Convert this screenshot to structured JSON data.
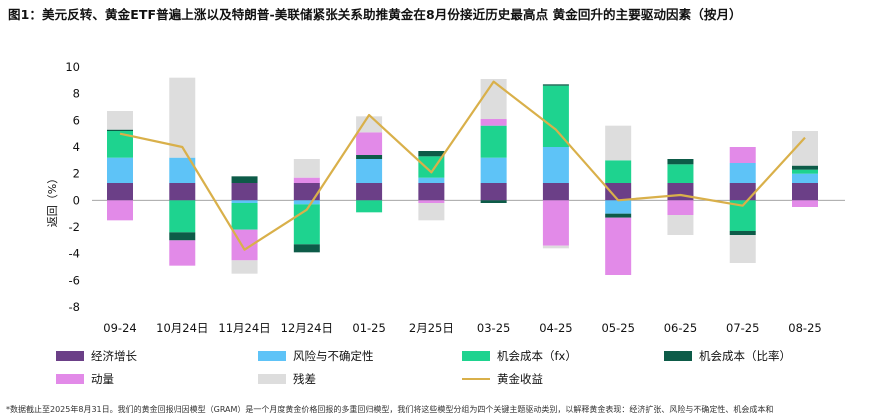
{
  "title": "图1：美元反转、黄金ETF普遍上涨以及特朗普-美联储紧张关系助推黄金在8月份接近历史最高点 黄金回升的主要驱动因素（按月）",
  "footnote": "*数据截止至2025年8月31日。我们的黄金回报归因模型（GRAM）是一个月度黄金价格回报的多重回归模型，我们将这些模型分组为四个关键主题驱动类别，以解释黄金表现：经济扩张、风险与不确定性、机会成本和",
  "colors": {
    "econ": "#6b3f87",
    "risk": "#5ec3f7",
    "opp_fx": "#1ed38f",
    "opp_rate": "#0d5b48",
    "momentum": "#e28ae8",
    "residual": "#dddddd",
    "gold_line": "#d9b04a"
  },
  "chart_data": {
    "type": "bar",
    "stacked": true,
    "title": "",
    "xlabel": "",
    "ylabel": "返回（%）",
    "ylim": [
      -8,
      10
    ],
    "yticks": [
      -8,
      -6,
      -4,
      -2,
      0,
      2,
      4,
      6,
      8,
      10
    ],
    "grid": false,
    "legend_position": "bottom",
    "categories": [
      "09-24",
      "10月24日",
      "11月24日",
      "12月24日",
      "01-25",
      "2月25日",
      "03-25",
      "04-25",
      "05-25",
      "06-25",
      "07-25",
      "08-25"
    ],
    "series": [
      {
        "name": "经济增长",
        "key": "econ",
        "values": [
          1.3,
          1.3,
          1.3,
          1.3,
          1.3,
          1.3,
          1.3,
          1.3,
          1.3,
          1.3,
          1.3,
          1.3
        ]
      },
      {
        "name": "风险与不确定性",
        "key": "risk",
        "values": [
          1.9,
          1.9,
          -0.2,
          -0.3,
          1.8,
          0.4,
          1.9,
          2.7,
          -1.0,
          0.0,
          1.5,
          0.7
        ]
      },
      {
        "name": "机会成本（fx）",
        "key": "opp_fx",
        "values": [
          2.0,
          -2.4,
          -2.0,
          -3.0,
          -0.9,
          1.6,
          2.4,
          4.6,
          1.7,
          1.4,
          -2.3,
          0.3
        ]
      },
      {
        "name": "机会成本（比率）",
        "key": "opp_rate",
        "values": [
          0.1,
          -0.6,
          0.5,
          -0.6,
          0.3,
          0.4,
          -0.2,
          0.1,
          -0.3,
          0.4,
          -0.3,
          0.3
        ]
      },
      {
        "name": "动量",
        "key": "momentum",
        "values": [
          -1.5,
          -1.9,
          -2.3,
          0.4,
          1.7,
          -0.2,
          0.5,
          -3.4,
          -4.3,
          -1.1,
          1.2,
          -0.5
        ]
      },
      {
        "name": "残差",
        "key": "residual",
        "values": [
          1.4,
          6.0,
          -1.0,
          1.4,
          1.2,
          -1.3,
          3.0,
          -0.2,
          2.6,
          -1.5,
          -2.1,
          2.6
        ]
      }
    ],
    "line": {
      "name": "黄金收益",
      "key": "gold_line",
      "values": [
        5.0,
        4.0,
        -3.7,
        -0.7,
        6.4,
        2.1,
        8.9,
        5.3,
        0.0,
        0.4,
        -0.4,
        4.7
      ]
    }
  }
}
